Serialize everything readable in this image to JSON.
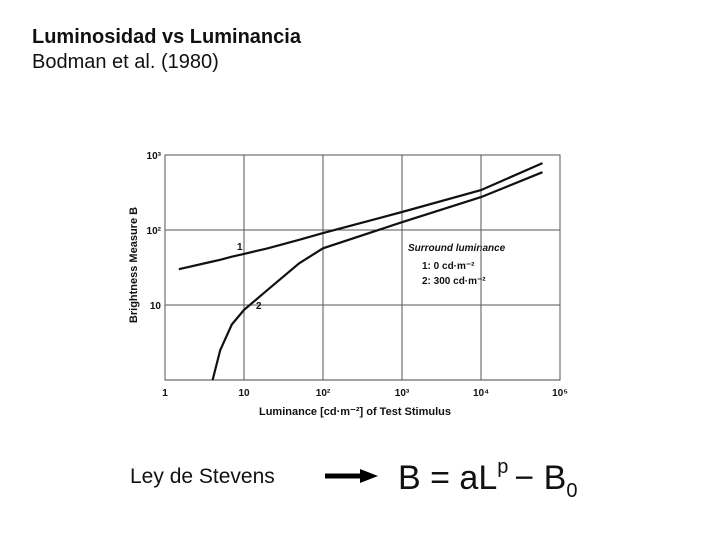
{
  "chart_data": {
    "type": "line",
    "title": "Luminosidad vs Luminancia",
    "subtitle": "Bodman et al. (1980)",
    "x_label": "Luminance [cd·m⁻²] of Test Stimulus",
    "y_label": "Brightness Measure B",
    "x": [
      1.5,
      4,
      5,
      7,
      10,
      20,
      50,
      100,
      1000,
      10000,
      60000
    ],
    "series": [
      {
        "name": "1:   0 cd·m⁻²",
        "color": "#111111",
        "values": [
          30,
          38,
          40,
          44,
          48,
          57,
          74,
          91,
          174,
          340,
          780
        ]
      },
      {
        "name": "2:  300 cd·m⁻²",
        "color": "#111111",
        "values": [
          null,
          1,
          2.5,
          5.5,
          8.6,
          16,
          36,
          57,
          127,
          275,
          590
        ]
      }
    ],
    "curve_labels": [
      "1",
      "2"
    ],
    "legend_title": "Surround luminance",
    "xlim": [
      1,
      100000
    ],
    "xticks": [
      1,
      10,
      {
        "value": 100,
        "label": "10²"
      },
      {
        "value": 1000,
        "label": "10³"
      },
      {
        "value": 10000,
        "label": "10⁴"
      },
      {
        "value": 100000,
        "label": "10⁵"
      }
    ],
    "ylim": [
      1,
      1000
    ],
    "yticks": [
      10,
      {
        "value": 100,
        "label": "10²"
      },
      {
        "value": 1000,
        "label": "10³"
      }
    ],
    "x_log": true,
    "y_log": true,
    "grid": true
  },
  "footer": {
    "law": "Ley de Stevens",
    "formula": [
      "B = aL",
      "p",
      "− B",
      "0"
    ]
  }
}
